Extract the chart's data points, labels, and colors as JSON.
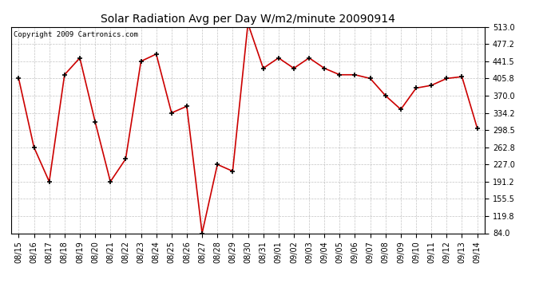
{
  "title": "Solar Radiation Avg per Day W/m2/minute 20090914",
  "copyright": "Copyright 2009 Cartronics.com",
  "dates": [
    "08/15",
    "08/16",
    "08/17",
    "08/18",
    "08/19",
    "08/20",
    "08/21",
    "08/22",
    "08/23",
    "08/24",
    "08/25",
    "08/26",
    "08/27",
    "08/28",
    "08/29",
    "08/30",
    "08/31",
    "09/01",
    "09/02",
    "09/03",
    "09/04",
    "09/05",
    "09/06",
    "09/07",
    "09/08",
    "09/09",
    "09/10",
    "09/11",
    "09/12",
    "09/13",
    "09/14"
  ],
  "values": [
    405.8,
    262.8,
    191.2,
    413.5,
    448.5,
    316.0,
    191.2,
    238.5,
    441.5,
    456.5,
    334.2,
    348.0,
    84.0,
    227.0,
    213.0,
    520.0,
    427.0,
    448.5,
    427.0,
    448.5,
    427.0,
    413.5,
    413.5,
    405.8,
    370.0,
    341.5,
    385.8,
    391.5,
    405.8,
    409.5,
    302.5
  ],
  "y_ticks": [
    84.0,
    119.8,
    155.5,
    191.2,
    227.0,
    262.8,
    298.5,
    334.2,
    370.0,
    405.8,
    441.5,
    477.2,
    513.0
  ],
  "ymin": 84.0,
  "ymax": 513.0,
  "line_color": "#cc0000",
  "marker_color": "#000000",
  "background_color": "#ffffff",
  "grid_color": "#aaaaaa",
  "title_fontsize": 10,
  "copyright_fontsize": 6.5,
  "tick_fontsize": 7
}
